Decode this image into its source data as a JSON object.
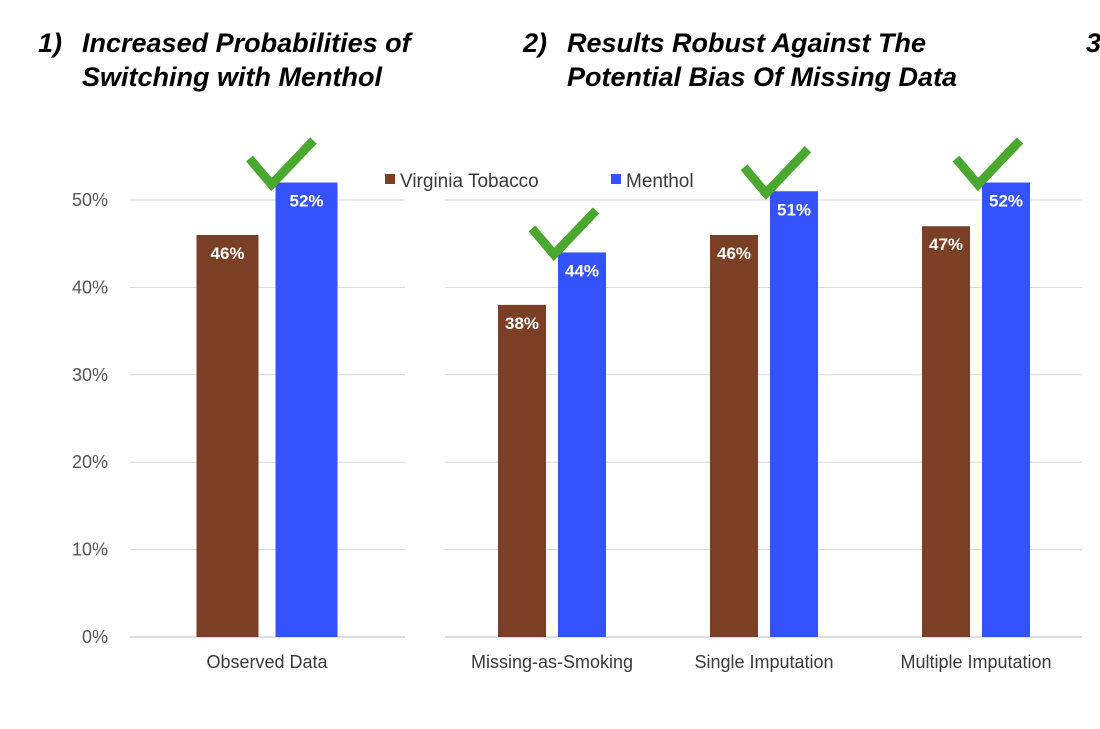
{
  "headings": [
    {
      "number": "1)",
      "lines": [
        "Increased Probabilities of",
        "Switching with Menthol"
      ]
    },
    {
      "number": "2)",
      "lines": [
        "Results Robust Against The",
        "Potential Bias Of Missing Data"
      ]
    },
    {
      "number": "3",
      "lines": []
    }
  ],
  "chart_data": [
    {
      "type": "bar",
      "categories": [
        "Observed Data"
      ],
      "series": [
        {
          "name": "Virginia Tobacco",
          "values": [
            46
          ],
          "color": "#7a3f24"
        },
        {
          "name": "Menthol",
          "values": [
            52
          ],
          "color": "#3552ff"
        }
      ],
      "data_labels": [
        [
          "46%"
        ],
        [
          "52%"
        ]
      ],
      "ylim": [
        0,
        50
      ],
      "yticks": [
        "0%",
        "10%",
        "20%",
        "30%",
        "40%",
        "50%"
      ],
      "grid": true,
      "checkmarks": [
        true
      ],
      "checkmark_color": "#4aa82e"
    },
    {
      "type": "bar",
      "categories": [
        "Missing-as-Smoking",
        "Single Imputation",
        "Multiple Imputation"
      ],
      "series": [
        {
          "name": "Virginia Tobacco",
          "values": [
            38,
            46,
            47
          ],
          "color": "#7a3f24"
        },
        {
          "name": "Menthol",
          "values": [
            44,
            51,
            52
          ],
          "color": "#3552ff"
        }
      ],
      "data_labels": [
        [
          "38%",
          "46%",
          "47%"
        ],
        [
          "44%",
          "51%",
          "52%"
        ]
      ],
      "ylim": [
        0,
        50
      ],
      "grid": true,
      "legend": "top",
      "checkmarks": [
        true,
        true,
        true
      ],
      "checkmark_color": "#4aa82e"
    }
  ]
}
